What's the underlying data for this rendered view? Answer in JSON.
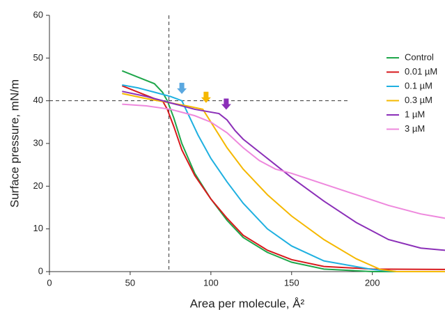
{
  "chart_data": {
    "type": "line",
    "x_label": "Area per molecule, Å²",
    "y_label": "Surface pressure, mN/m",
    "xlim": [
      0,
      245
    ],
    "ylim": [
      0,
      60
    ],
    "xticks": [
      0,
      50,
      100,
      150,
      200
    ],
    "yticks": [
      0,
      10,
      20,
      30,
      40,
      50,
      60
    ],
    "grid": false,
    "legend": "upper right",
    "series": [
      {
        "name": "Control",
        "color": "#1ea64a",
        "x": [
          45,
          55,
          65,
          70,
          73,
          77,
          82,
          90,
          100,
          110,
          120,
          135,
          150,
          170,
          200,
          245
        ],
        "values": [
          47,
          45.5,
          44,
          42,
          40,
          36,
          30,
          23,
          17,
          12,
          8,
          4.5,
          2.2,
          0.6,
          0,
          0
        ]
      },
      {
        "name": "0.01 µM",
        "color": "#d7191c",
        "x": [
          45,
          55,
          65,
          70,
          73,
          77,
          82,
          90,
          100,
          110,
          120,
          135,
          150,
          170,
          200,
          245
        ],
        "values": [
          43.5,
          42,
          40.5,
          40,
          38,
          34,
          28.5,
          22.5,
          17,
          12.5,
          8.5,
          5,
          2.8,
          1.2,
          0.6,
          0.5
        ]
      },
      {
        "name": "0.1 µM",
        "color": "#1fb0e0",
        "x": [
          45,
          55,
          65,
          75,
          82,
          87,
          92,
          100,
          110,
          120,
          135,
          150,
          170,
          200,
          215,
          245
        ],
        "values": [
          43.7,
          43,
          42,
          41,
          40,
          36,
          32,
          26.5,
          21,
          16,
          10,
          6,
          2.5,
          0.5,
          0,
          0
        ]
      },
      {
        "name": "0.3 µM",
        "color": "#f5b800",
        "x": [
          45,
          60,
          75,
          85,
          95,
          100,
          110,
          120,
          135,
          150,
          170,
          190,
          205,
          215,
          245
        ],
        "values": [
          41.7,
          40.5,
          39.5,
          38.8,
          38,
          35,
          29,
          24,
          18,
          13,
          7.5,
          3,
          0.5,
          0,
          0
        ]
      },
      {
        "name": "1 µM",
        "color": "#8b2fb8",
        "x": [
          45,
          60,
          75,
          90,
          105,
          110,
          115,
          120,
          135,
          150,
          170,
          190,
          210,
          230,
          245
        ],
        "values": [
          42.2,
          41,
          39.5,
          38,
          37,
          35.5,
          33,
          31,
          26.5,
          22,
          16.5,
          11.5,
          7.5,
          5.5,
          5
        ]
      },
      {
        "name": "3 µM",
        "color": "#ee88dd",
        "x": [
          45,
          60,
          75,
          90,
          100,
          110,
          120,
          130,
          140,
          150,
          170,
          190,
          210,
          230,
          245
        ],
        "values": [
          39.2,
          38.8,
          38,
          36.5,
          35,
          32.5,
          29,
          26,
          24,
          23,
          20.5,
          18,
          15.5,
          13.5,
          12.5
        ]
      }
    ],
    "reference_lines": [
      {
        "axis": "y",
        "value": 40,
        "to": 186
      },
      {
        "axis": "x",
        "value": 74
      }
    ],
    "arrows": [
      {
        "x": 82,
        "y": 41.6,
        "color": "#5aa8e0"
      },
      {
        "x": 97,
        "y": 39.5,
        "color": "#f5b800"
      },
      {
        "x": 109.5,
        "y": 37.9,
        "color": "#8b2fb8"
      }
    ]
  }
}
